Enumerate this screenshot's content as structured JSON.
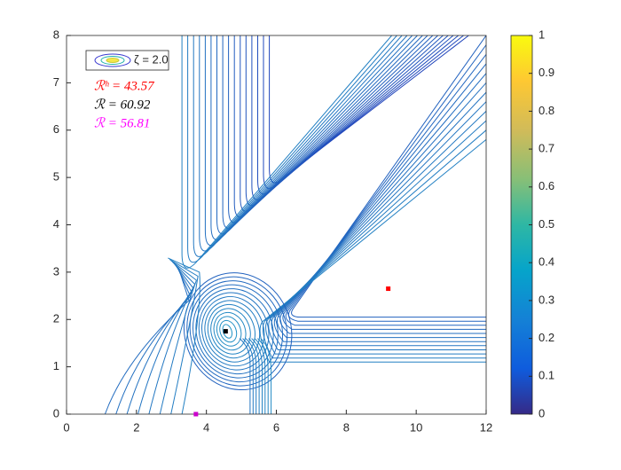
{
  "chart_data": {
    "type": "contour",
    "xlim": [
      0,
      12
    ],
    "ylim": [
      0,
      8
    ],
    "xticks": [
      0,
      2,
      4,
      6,
      8,
      10,
      12
    ],
    "yticks": [
      0,
      1,
      2,
      3,
      4,
      5,
      6,
      7,
      8
    ],
    "legend": {
      "label": "ζ = 2.0",
      "corner": "upper left"
    },
    "annotations": [
      {
        "text": "ℛʰ = 43.57",
        "color": "#ff0000"
      },
      {
        "text": "ℛ = 60.92",
        "color": "#000000"
      },
      {
        "text": "ℛ = 56.81",
        "color": "#ff00ff"
      }
    ],
    "points": {
      "x": [
        9.2,
        4.55,
        3.7
      ],
      "y": [
        2.65,
        1.75,
        0
      ],
      "colors": [
        "#ff0000",
        "#000000",
        "#cc00cc"
      ]
    },
    "colorbar": {
      "clim": [
        0,
        1
      ],
      "ticks": [
        0,
        0.1,
        0.2,
        0.3,
        0.4,
        0.5,
        0.6,
        0.7,
        0.8,
        0.9,
        1
      ]
    }
  }
}
